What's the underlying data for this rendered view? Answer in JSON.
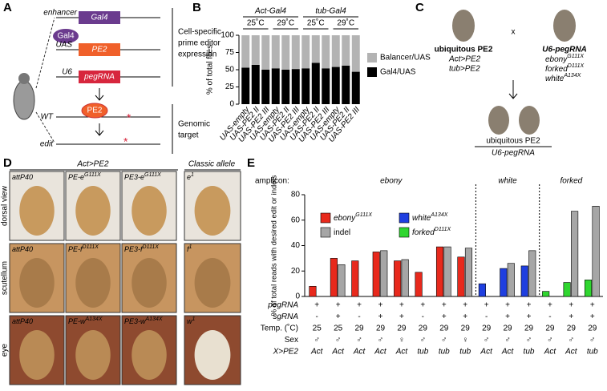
{
  "panel_labels": [
    "A",
    "B",
    "C",
    "D",
    "E"
  ],
  "panel_a": {
    "enhancer": "enhancer",
    "gal4": "Gal4",
    "gal4_protein": "Gal4",
    "uas": "UAS",
    "pe2": "PE2",
    "u6": "U6",
    "pegrna": "pegRNA",
    "expression": [
      "Cell-specific",
      "prime editor",
      "expression"
    ],
    "pe2_protein": "PE2",
    "wt": "WT",
    "edit": "edit",
    "target": [
      "Genomic",
      "target"
    ]
  },
  "panel_c": {
    "left_title": "ubiquitous PE2",
    "left_lines": [
      "Act>PE2",
      "tub>PE2"
    ],
    "cross": "x",
    "right_title": "U6-pegRNA",
    "right_lines": [
      {
        "name": "ebony",
        "sup": "G111X"
      },
      {
        "name": "forked",
        "sup": "D111X"
      },
      {
        "name": "white",
        "sup": "A134X"
      }
    ],
    "offspring": [
      "ubiquitous PE2",
      "U6-pegRNA"
    ]
  },
  "panel_d": {
    "header": "Act>PE2",
    "classic_header": "Classic allele",
    "rows": [
      {
        "label": "dorsal view",
        "photos": [
          {
            "name": "attP40"
          },
          {
            "name": "PE-e",
            "sup": "G111X"
          },
          {
            "name": "PE3-e",
            "sup": "G111X"
          },
          {
            "name": "e",
            "sup": "1"
          }
        ]
      },
      {
        "label": "scutellum",
        "photos": [
          {
            "name": "attP40"
          },
          {
            "name": "PE-f",
            "sup": "D111X"
          },
          {
            "name": "PE3-f",
            "sup": "D111X"
          },
          {
            "name": "f",
            "sup": "1"
          }
        ]
      },
      {
        "label": "eye",
        "photos": [
          {
            "name": "attP40"
          },
          {
            "name": "PE-w",
            "sup": "A134X"
          },
          {
            "name": "PE3-w",
            "sup": "A134X"
          },
          {
            "name": "w",
            "sup": "1"
          }
        ]
      }
    ]
  },
  "chart_data": [
    {
      "type": "stacked_bar",
      "y_label": "% of total flies",
      "groups": [
        {
          "label": "Act-Gal4",
          "temps": [
            "25˚C",
            "29˚C"
          ]
        },
        {
          "label": "tub-Gal4",
          "temps": [
            "25˚C",
            "29˚C"
          ]
        }
      ],
      "categories": [
        "UAS-empty",
        "UAS-PE2 II",
        "UAS-PE2 III",
        "UAS-empty",
        "UAS-PE2 II",
        "UAS-PE2 III",
        "UAS-empty",
        "UAS-PE2 II",
        "UAS-PE2 III",
        "UAS-empty",
        "UAS-PE2 II",
        "UAS-PE2 III"
      ],
      "series": [
        {
          "name": "Balancer/UAS",
          "color": "#b3b3b3",
          "values": [
            47,
            43,
            50,
            48,
            50,
            49,
            48,
            40,
            48,
            46,
            44,
            53
          ]
        },
        {
          "name": "Gal4/UAS",
          "color": "#000000",
          "values": [
            53,
            57,
            50,
            52,
            50,
            51,
            52,
            60,
            52,
            54,
            56,
            47
          ]
        }
      ],
      "ylim": [
        0,
        100
      ],
      "yticks": [
        0,
        25,
        50,
        75,
        100
      ]
    },
    {
      "type": "grouped_bar",
      "y_label": "% of total reads with desired edit or indels",
      "amplicon_label": "amplicon:",
      "series": [
        {
          "name": "ebony",
          "sup": "G111X",
          "section": "ebony",
          "color": "#e8291c",
          "values": [
            8,
            30,
            28,
            35,
            28,
            19,
            39,
            31,
            null,
            null,
            null,
            null,
            null,
            null
          ]
        },
        {
          "name": "white",
          "sup": "A134X",
          "section": "white",
          "color": "#1f3fe0",
          "values": [
            null,
            null,
            null,
            null,
            null,
            null,
            null,
            null,
            10,
            22,
            24,
            null,
            null,
            null
          ]
        },
        {
          "name": "forked",
          "sup": "D111X",
          "section": "forked",
          "color": "#2fd62f",
          "values": [
            null,
            null,
            null,
            null,
            null,
            null,
            null,
            null,
            null,
            null,
            null,
            4,
            11,
            13
          ]
        },
        {
          "name": "indel",
          "color": "#a6a6a6",
          "values": [
            0,
            25,
            0,
            36,
            29,
            0,
            39,
            38,
            0,
            26,
            36,
            0,
            67,
            71
          ]
        }
      ],
      "rows": [
        {
          "label": "pegRNA",
          "cells": [
            "+",
            "+",
            "+",
            "+",
            "+",
            "+",
            "+",
            "+",
            "+",
            "+",
            "+",
            "+",
            "+",
            "+"
          ]
        },
        {
          "label": "sgRNA",
          "cells": [
            "-",
            "+",
            "-",
            "+",
            "+",
            "-",
            "+",
            "+",
            "-",
            "+",
            "+",
            "-",
            "+",
            "+"
          ]
        },
        {
          "label": "Temp. (˚C)",
          "cells": [
            25,
            25,
            29,
            29,
            29,
            29,
            29,
            29,
            29,
            29,
            29,
            29,
            29,
            29
          ]
        },
        {
          "label": "Sex",
          "cells": [
            "♂",
            "♂",
            "♂",
            "♂",
            "♀",
            "♂",
            "♂",
            "♀",
            "♂",
            "♂",
            "♂",
            "♂",
            "♂",
            "♂"
          ]
        },
        {
          "label": "X>PE2",
          "cells": [
            "Act",
            "Act",
            "Act",
            "Act",
            "Act",
            "tub",
            "tub",
            "tub",
            "Act",
            "Act",
            "tub",
            "Act",
            "Act",
            "tub"
          ]
        }
      ],
      "ylim": [
        0,
        80
      ],
      "yticks": [
        0,
        20,
        40,
        60,
        80
      ]
    }
  ]
}
